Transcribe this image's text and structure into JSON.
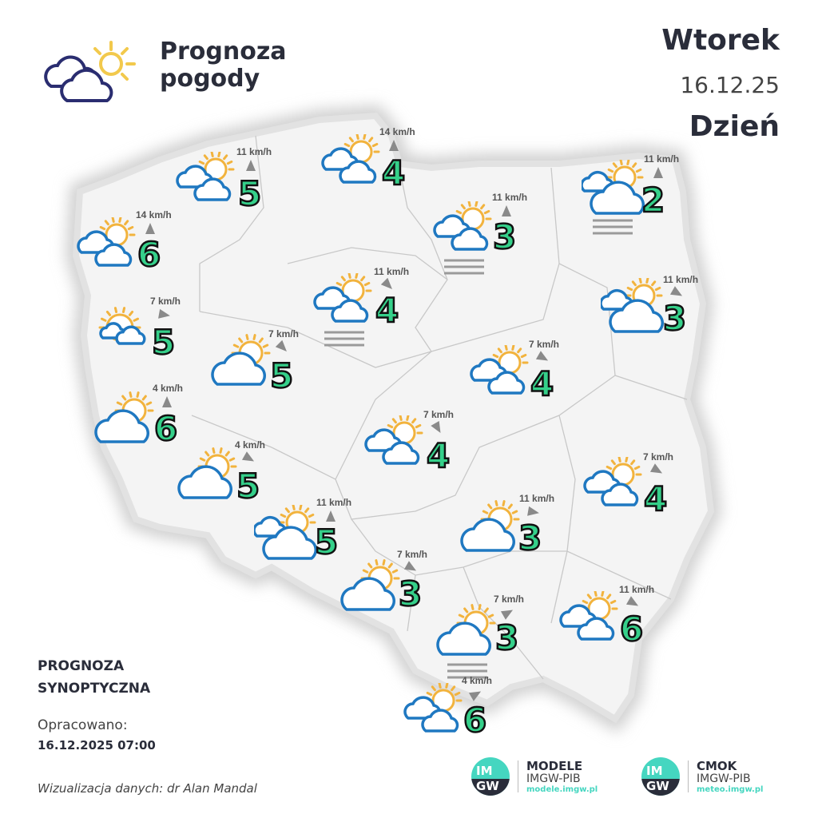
{
  "header": {
    "title_line1": "Prognoza",
    "title_line2": "pogody",
    "day": "Wtorek",
    "date": "16.12.25",
    "period": "Dzień"
  },
  "footer": {
    "forecast_line1": "PROGNOZA",
    "forecast_line2": "SYNOPTYCZNA",
    "prepared_label": "Opracowano:",
    "prepared_value": "16.12.2025 07:00",
    "credit": "Wizualizacja danych: dr Alan Mandal"
  },
  "brands": [
    {
      "logo": "IMGW",
      "name": "MODELE",
      "org": "IMGW-PIB",
      "url": "modele.imgw.pl"
    },
    {
      "logo": "IMGW",
      "name": "CMOK",
      "org": "IMGW-PIB",
      "url": "meteo.imgw.pl"
    }
  ],
  "colors": {
    "temp": "#35d08a",
    "cloud": "#1f78c1",
    "sun": "#f2b33d",
    "map_fill": "#f4f4f4",
    "wind_arrow": "#8a8a8a"
  },
  "stations": [
    {
      "icon": "two-clouds-sun",
      "temp": "5",
      "wind": "11 km/h",
      "wind_dir": 0
    },
    {
      "icon": "two-clouds-sun",
      "temp": "4",
      "wind": "14 km/h",
      "wind_dir": 0
    },
    {
      "icon": "big-cloud-sun-fog",
      "temp": "2",
      "wind": "11 km/h",
      "wind_dir": 0
    },
    {
      "icon": "two-clouds-sun-fog",
      "temp": "3",
      "wind": "11 km/h",
      "wind_dir": 0
    },
    {
      "icon": "two-clouds-sun",
      "temp": "6",
      "wind": "14 km/h",
      "wind_dir": 0
    },
    {
      "icon": "two-clouds-sun-fog",
      "temp": "4",
      "wind": "11 km/h",
      "wind_dir": 135
    },
    {
      "icon": "big-cloud-sun",
      "temp": "3",
      "wind": "11 km/h",
      "wind_dir": 120
    },
    {
      "icon": "sun-small-clouds",
      "temp": "5",
      "wind": "7 km/h",
      "wind_dir": 100
    },
    {
      "icon": "cloud-sun",
      "temp": "5",
      "wind": "7 km/h",
      "wind_dir": 135
    },
    {
      "icon": "two-clouds-sun",
      "temp": "4",
      "wind": "7 km/h",
      "wind_dir": 120
    },
    {
      "icon": "cloud-sun",
      "temp": "6",
      "wind": "4 km/h",
      "wind_dir": 0
    },
    {
      "icon": "two-clouds-sun",
      "temp": "4",
      "wind": "7 km/h",
      "wind_dir": 150
    },
    {
      "icon": "cloud-sun",
      "temp": "5",
      "wind": "4 km/h",
      "wind_dir": 120
    },
    {
      "icon": "two-clouds-sun",
      "temp": "4",
      "wind": "7 km/h",
      "wind_dir": 120
    },
    {
      "icon": "big-cloud-sun",
      "temp": "5",
      "wind": "11 km/h",
      "wind_dir": 0
    },
    {
      "icon": "cloud-sun",
      "temp": "3",
      "wind": "11 km/h",
      "wind_dir": 100
    },
    {
      "icon": "cloud-sun",
      "temp": "3",
      "wind": "7 km/h",
      "wind_dir": 120
    },
    {
      "icon": "cloud-sun-fog",
      "temp": "3",
      "wind": "7 km/h",
      "wind_dir": 60
    },
    {
      "icon": "two-clouds-sun",
      "temp": "6",
      "wind": "11 km/h",
      "wind_dir": 120
    },
    {
      "icon": "two-clouds-sun",
      "temp": "6",
      "wind": "4 km/h",
      "wind_dir": 60
    }
  ]
}
